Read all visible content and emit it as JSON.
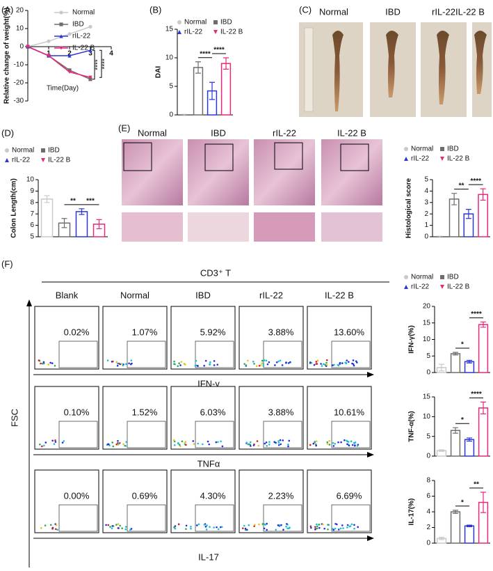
{
  "chart_data": [
    {
      "type": "line",
      "label": "(A)",
      "ylabel": "Relative change of weight(%)",
      "xlabel": "Time(Day)",
      "x": [
        0,
        1,
        2,
        3
      ],
      "xlim": [
        0,
        4
      ],
      "xticks": [
        1,
        2,
        3,
        4
      ],
      "ylim": [
        -30,
        20
      ],
      "yticks": [
        -30,
        -20,
        -10,
        0,
        10,
        20
      ],
      "series": [
        {
          "name": "Normal",
          "color": "#c9c9c9",
          "marker": "circle",
          "values": [
            0,
            3,
            7,
            11
          ]
        },
        {
          "name": "IBD",
          "color": "#6d6d6d",
          "marker": "square",
          "values": [
            0,
            -5,
            -13,
            -18
          ]
        },
        {
          "name": "rIL-22",
          "color": "#2b35d8",
          "marker": "triangle",
          "values": [
            0,
            -5,
            -5,
            -2
          ]
        },
        {
          "name": "IL-22 B",
          "color": "#e8287a",
          "marker": "invtriangle",
          "values": [
            0,
            -5,
            -14,
            -17
          ]
        }
      ],
      "annotations": [
        "****",
        "****"
      ],
      "legend": true
    },
    {
      "type": "bar",
      "label": "(B)",
      "ylabel": "DAI",
      "categories": [
        null
      ],
      "ylim": [
        0,
        15
      ],
      "yticks": [
        0,
        5,
        10,
        15
      ],
      "series": [
        {
          "name": "Normal",
          "color": "#c9c9c9",
          "marker": "circle",
          "values": [
            0
          ],
          "errors": [
            0.1
          ]
        },
        {
          "name": "IBD",
          "color": "#6d6d6d",
          "marker": "square",
          "values": [
            8.3
          ],
          "errors": [
            1
          ]
        },
        {
          "name": "rIL-22",
          "color": "#2b35d8",
          "marker": "triangle",
          "values": [
            4.2
          ],
          "errors": [
            1.5
          ]
        },
        {
          "name": "IL-22 B",
          "color": "#e8287a",
          "marker": "invtriangle",
          "values": [
            9
          ],
          "errors": [
            1
          ]
        }
      ],
      "annotations": [
        "****",
        "****"
      ],
      "legend": true
    },
    {
      "type": "bar",
      "label": "(D)",
      "ylabel": "Colon Length(cm)",
      "categories": [
        null
      ],
      "ylim": [
        5,
        10
      ],
      "yticks": [
        5,
        6,
        7,
        8,
        9,
        10
      ],
      "series": [
        {
          "name": "Normal",
          "color": "#c9c9c9",
          "marker": "circle",
          "values": [
            8.3
          ],
          "errors": [
            0.3
          ]
        },
        {
          "name": "IBD",
          "color": "#6d6d6d",
          "marker": "square",
          "values": [
            6.2
          ],
          "errors": [
            0.4
          ]
        },
        {
          "name": "rIL-22",
          "color": "#2b35d8",
          "marker": "triangle",
          "values": [
            7.2
          ],
          "errors": [
            0.25
          ]
        },
        {
          "name": "IL-22 B",
          "color": "#e8287a",
          "marker": "invtriangle",
          "values": [
            6.1
          ],
          "errors": [
            0.4
          ]
        }
      ],
      "annotations": [
        "**",
        "***"
      ],
      "legend": true
    },
    {
      "type": "bar",
      "label": "(E)",
      "ylabel": "Histological score",
      "categories": [
        null
      ],
      "ylim": [
        0,
        5
      ],
      "yticks": [
        0,
        1,
        2,
        3,
        4,
        5
      ],
      "series": [
        {
          "name": "Normal",
          "color": "#c9c9c9",
          "marker": "circle",
          "values": [
            0
          ],
          "errors": [
            0.05
          ]
        },
        {
          "name": "IBD",
          "color": "#6d6d6d",
          "marker": "square",
          "values": [
            3.3
          ],
          "errors": [
            0.5
          ]
        },
        {
          "name": "rIL-22",
          "color": "#2b35d8",
          "marker": "triangle",
          "values": [
            2.0
          ],
          "errors": [
            0.4
          ]
        },
        {
          "name": "IL-22 B",
          "color": "#e8287a",
          "marker": "invtriangle",
          "values": [
            3.7
          ],
          "errors": [
            0.5
          ]
        }
      ],
      "annotations": [
        "**",
        "****"
      ],
      "legend": true
    },
    {
      "type": "bar",
      "ylabel": "IFN-γ(%)",
      "categories": [
        null
      ],
      "ylim": [
        0,
        20
      ],
      "yticks": [
        0,
        5,
        10,
        15,
        20
      ],
      "series": [
        {
          "name": "Normal",
          "color": "#c9c9c9",
          "marker": "circle",
          "values": [
            1.5
          ],
          "errors": [
            1
          ]
        },
        {
          "name": "IBD",
          "color": "#6d6d6d",
          "marker": "square",
          "values": [
            5.7
          ],
          "errors": [
            0.4
          ]
        },
        {
          "name": "rIL-22",
          "color": "#2b35d8",
          "marker": "triangle",
          "values": [
            3.3
          ],
          "errors": [
            0.4
          ]
        },
        {
          "name": "IL-22 B",
          "color": "#e8287a",
          "marker": "invtriangle",
          "values": [
            14.5
          ],
          "errors": [
            0.8
          ]
        }
      ],
      "annotations": [
        "*",
        "****"
      ],
      "legend": true
    },
    {
      "type": "bar",
      "ylabel": "TNF-α(%)",
      "categories": [
        null
      ],
      "ylim": [
        0,
        15
      ],
      "yticks": [
        0,
        5,
        10,
        15
      ],
      "series": [
        {
          "name": "Normal",
          "color": "#c9c9c9",
          "marker": "circle",
          "values": [
            1.4
          ],
          "errors": [
            0.2
          ]
        },
        {
          "name": "IBD",
          "color": "#6d6d6d",
          "marker": "square",
          "values": [
            6.5
          ],
          "errors": [
            0.7
          ]
        },
        {
          "name": "rIL-22",
          "color": "#2b35d8",
          "marker": "triangle",
          "values": [
            4.2
          ],
          "errors": [
            0.4
          ]
        },
        {
          "name": "IL-22 B",
          "color": "#e8287a",
          "marker": "invtriangle",
          "values": [
            12.2
          ],
          "errors": [
            1.5
          ]
        }
      ],
      "annotations": [
        "*",
        "****"
      ],
      "legend": false
    },
    {
      "type": "bar",
      "ylabel": "IL-17(%)",
      "categories": [
        null
      ],
      "ylim": [
        0,
        8
      ],
      "yticks": [
        0,
        2,
        4,
        6,
        8
      ],
      "series": [
        {
          "name": "Normal",
          "color": "#c9c9c9",
          "marker": "circle",
          "values": [
            0.6
          ],
          "errors": [
            0.15
          ]
        },
        {
          "name": "IBD",
          "color": "#6d6d6d",
          "marker": "square",
          "values": [
            4.0
          ],
          "errors": [
            0.2
          ]
        },
        {
          "name": "rIL-22",
          "color": "#2b35d8",
          "marker": "triangle",
          "values": [
            2.2
          ],
          "errors": [
            0.1
          ]
        },
        {
          "name": "IL-22 B",
          "color": "#e8287a",
          "marker": "invtriangle",
          "values": [
            5.2
          ],
          "errors": [
            1.3
          ]
        }
      ],
      "annotations": [
        "*",
        "**"
      ],
      "legend": false
    }
  ],
  "photos": {
    "label": "(C)",
    "samples": [
      "Normal",
      "IBD",
      "rIL-22",
      "IL-22 B"
    ]
  },
  "histology": {
    "samples": [
      "Normal",
      "IBD",
      "rIL-22",
      "IL-22 B"
    ]
  },
  "flow": {
    "label": "(F)",
    "header": "CD3⁺ T",
    "axis_label": "FSC",
    "columns": [
      "Blank",
      "Normal",
      "IBD",
      "rIL-22",
      "IL-22 B"
    ],
    "rows": [
      {
        "marker": "IFN-γ",
        "values": [
          "0.02%",
          "1.07%",
          "5.92%",
          "3.88%",
          "13.60%"
        ]
      },
      {
        "marker": "TNFα",
        "values": [
          "0.10%",
          "1.52%",
          "6.03%",
          "3.88%",
          "10.61%"
        ]
      },
      {
        "marker": "IL-17",
        "values": [
          "0.00%",
          "0.69%",
          "4.30%",
          "2.23%",
          "6.69%"
        ]
      }
    ]
  }
}
